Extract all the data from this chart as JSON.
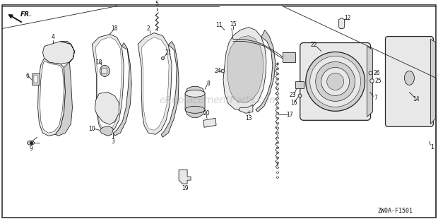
{
  "bg_color": "#ffffff",
  "border_color": "#333333",
  "text_color": "#111111",
  "line_color": "#222222",
  "fill_light": "#e8e8e8",
  "fill_mid": "#d0d0d0",
  "fill_dark": "#b0b0b0",
  "watermark": "eReplacementParts.com",
  "diagram_code": "ZW0A-F1501",
  "fr_label": "FR.",
  "figsize": [
    6.2,
    3.1
  ],
  "dpi": 100
}
